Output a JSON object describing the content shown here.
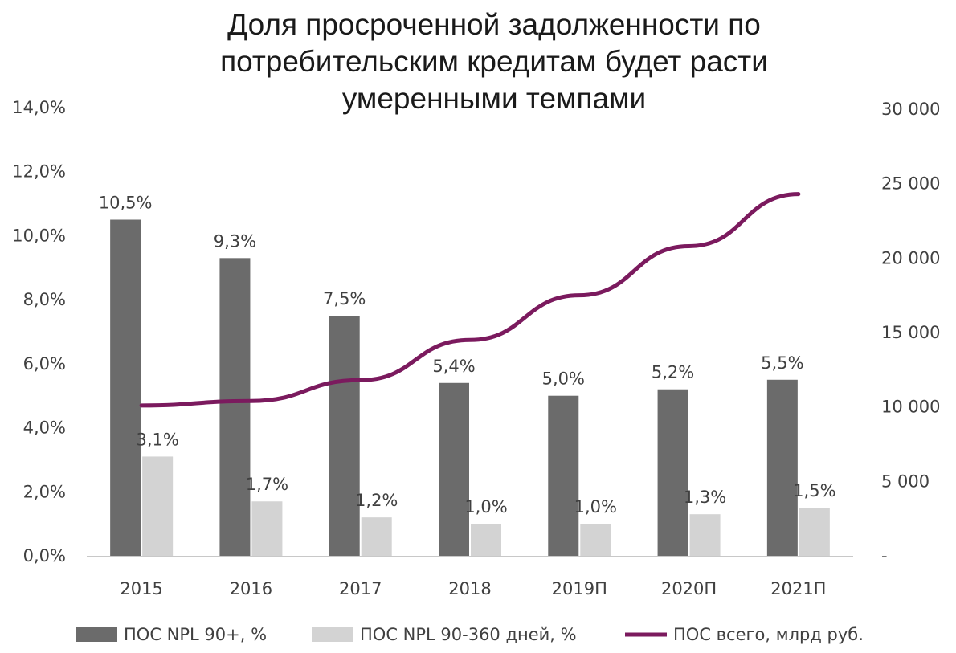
{
  "chart_data": {
    "type": "bar",
    "title_lines": [
      "Доля просроченной задолженности по",
      "потребительским кредитам будет расти",
      "умеренными темпами"
    ],
    "categories": [
      "2015",
      "2016",
      "2017",
      "2018",
      "2019П",
      "2020П",
      "2021П"
    ],
    "series": [
      {
        "name": "ПОС NPL 90+, %",
        "axis": "left",
        "kind": "bar",
        "color": "#6b6b6b",
        "values": [
          10.5,
          9.3,
          7.5,
          5.4,
          5.0,
          5.2,
          5.5
        ],
        "labels": [
          "10,5%",
          "9,3%",
          "7,5%",
          "5,4%",
          "5,0%",
          "5,2%",
          "5,5%"
        ]
      },
      {
        "name": "ПОС NPL 90-360 дней, %",
        "axis": "left",
        "kind": "bar",
        "color": "#d3d3d3",
        "values": [
          3.1,
          1.7,
          1.2,
          1.0,
          1.0,
          1.3,
          1.5
        ],
        "labels": [
          "3,1%",
          "1,7%",
          "1,2%",
          "1,0%",
          "1,0%",
          "1,3%",
          "1,5%"
        ]
      },
      {
        "name": "ПОС всего, млрд руб.",
        "axis": "right",
        "kind": "line",
        "color": "#7b1a5e",
        "values": [
          10100,
          10400,
          11800,
          14500,
          17500,
          20800,
          24300
        ]
      }
    ],
    "y_left": {
      "min": 0,
      "max": 14,
      "step": 2,
      "tick_labels": [
        "0,0%",
        "2,0%",
        "4,0%",
        "6,0%",
        "8,0%",
        "10,0%",
        "12,0%",
        "14,0%"
      ]
    },
    "y_right": {
      "min": 0,
      "max": 30000,
      "step": 5000,
      "tick_labels": [
        "-",
        "5 000",
        "10 000",
        "15 000",
        "20 000",
        "25 000",
        "30 000"
      ]
    },
    "grid": false,
    "legend_position": "bottom"
  }
}
